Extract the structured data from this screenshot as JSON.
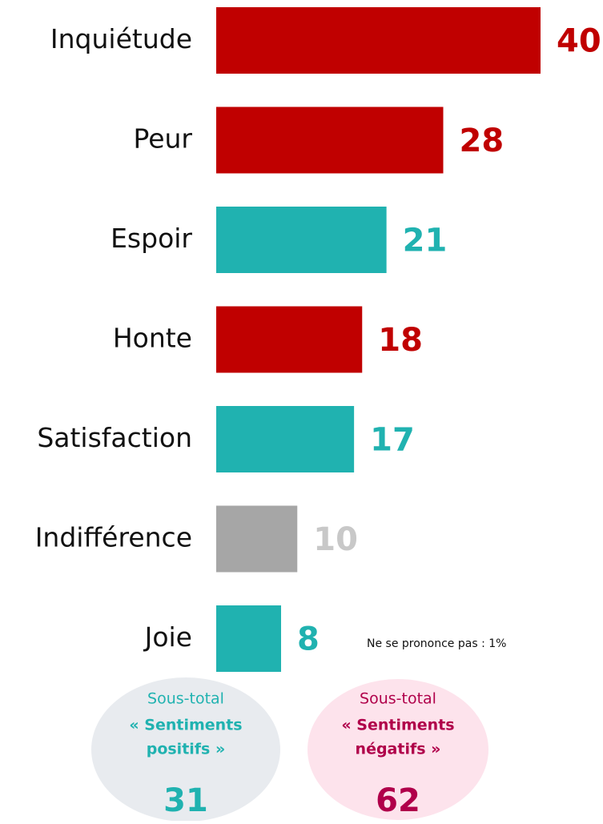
{
  "chart_data": {
    "type": "hbar",
    "categories": [
      "Inquiétude",
      "Peur",
      "Espoir",
      "Honte",
      "Satisfaction",
      "Indifférence",
      "Joie"
    ],
    "values": [
      40,
      28,
      21,
      18,
      17,
      10,
      8
    ],
    "colors": [
      "#c00000",
      "#c00000",
      "#20b2b0",
      "#c00000",
      "#20b2b0",
      "#a6a6a6",
      "#20b2b0"
    ],
    "label_colors": [
      "#c00000",
      "#c00000",
      "#20b2b0",
      "#c00000",
      "#20b2b0",
      "#c8c8c8",
      "#20b2b0"
    ],
    "xlim": [
      0,
      40
    ],
    "note": "Ne se prononce pas : 1%",
    "subtotals": [
      {
        "label": "Sous-total",
        "name_lines": [
          "« Sentiments",
          "positifs »"
        ],
        "value": 31,
        "fill": "#e8ebef",
        "color": "#20b2b0"
      },
      {
        "label": "Sous-total",
        "name_lines": [
          "« Sentiments",
          "négatifs »"
        ],
        "value": 62,
        "fill": "#fde3ec",
        "color": "#b0004a"
      }
    ]
  }
}
